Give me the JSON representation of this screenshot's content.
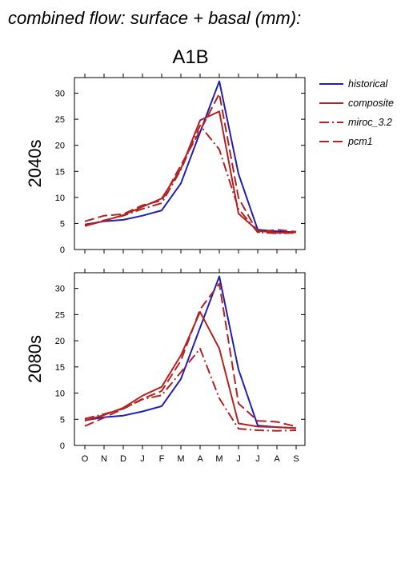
{
  "figure": {
    "title": "combined flow: surface + basal (mm):",
    "scenario": "A1B"
  },
  "legend": {
    "position": "right",
    "items": [
      {
        "label": "historical",
        "color": "#2020b0",
        "style": "solid"
      },
      {
        "label": "composite",
        "color": "#b22222",
        "style": "solid"
      },
      {
        "label": "miroc_3.2",
        "color": "#b22222",
        "style": "dashdot"
      },
      {
        "label": "pcm1",
        "color": "#b22222",
        "style": "dashed"
      }
    ]
  },
  "chart_data": [
    {
      "type": "line",
      "title": "A1B",
      "ylabel": "2040s",
      "xlabel": "",
      "categories": [
        "O",
        "N",
        "D",
        "J",
        "F",
        "M",
        "A",
        "M",
        "J",
        "J",
        "A",
        "S"
      ],
      "ylim": [
        0,
        33
      ],
      "yticks": [
        0,
        5,
        10,
        15,
        20,
        25,
        30
      ],
      "series": [
        {
          "name": "historical",
          "color": "#2020b0",
          "style": "solid",
          "values": [
            4.8,
            5.4,
            5.7,
            6.5,
            7.5,
            12.7,
            22.5,
            32.3,
            14.5,
            3.8,
            3.5,
            3.3
          ]
        },
        {
          "name": "composite",
          "color": "#b22222",
          "style": "solid",
          "values": [
            4.5,
            5.5,
            6.6,
            8.2,
            9.8,
            15.5,
            24.8,
            26.5,
            6.9,
            3.6,
            3.2,
            3.3
          ]
        },
        {
          "name": "miroc_3.2",
          "color": "#b22222",
          "style": "dashdot",
          "values": [
            4.6,
            5.6,
            6.5,
            7.8,
            8.9,
            15.3,
            23.8,
            19.2,
            7.8,
            3.3,
            3.1,
            3.2
          ]
        },
        {
          "name": "pcm1",
          "color": "#b22222",
          "style": "dashed",
          "values": [
            5.4,
            6.5,
            6.8,
            8.5,
            9.4,
            16.2,
            22.8,
            29.9,
            9.9,
            3.3,
            3.8,
            3.4
          ]
        }
      ]
    },
    {
      "type": "line",
      "title": "",
      "ylabel": "2080s",
      "xlabel": "",
      "categories": [
        "O",
        "N",
        "D",
        "J",
        "F",
        "M",
        "A",
        "M",
        "J",
        "J",
        "A",
        "S"
      ],
      "ylim": [
        0,
        33
      ],
      "yticks": [
        0,
        5,
        10,
        15,
        20,
        25,
        30
      ],
      "series": [
        {
          "name": "historical",
          "color": "#2020b0",
          "style": "solid",
          "values": [
            4.8,
            5.4,
            5.7,
            6.5,
            7.5,
            12.7,
            22.5,
            32.3,
            14.5,
            3.8,
            3.5,
            3.3
          ]
        },
        {
          "name": "composite",
          "color": "#b22222",
          "style": "solid",
          "values": [
            4.7,
            5.8,
            7.2,
            9.5,
            11.2,
            17.2,
            25.5,
            18.5,
            4.2,
            3.6,
            3.5,
            3.3
          ]
        },
        {
          "name": "miroc_3.2",
          "color": "#b22222",
          "style": "dashdot",
          "values": [
            5.1,
            6.0,
            7.0,
            8.8,
            9.6,
            14.0,
            18.5,
            9.0,
            3.2,
            2.9,
            2.8,
            2.9
          ]
        },
        {
          "name": "pcm1",
          "color": "#b22222",
          "style": "dashed",
          "values": [
            3.7,
            5.3,
            7.0,
            8.9,
            10.4,
            16.2,
            26.0,
            30.9,
            8.0,
            4.7,
            4.5,
            3.6
          ]
        }
      ]
    }
  ]
}
